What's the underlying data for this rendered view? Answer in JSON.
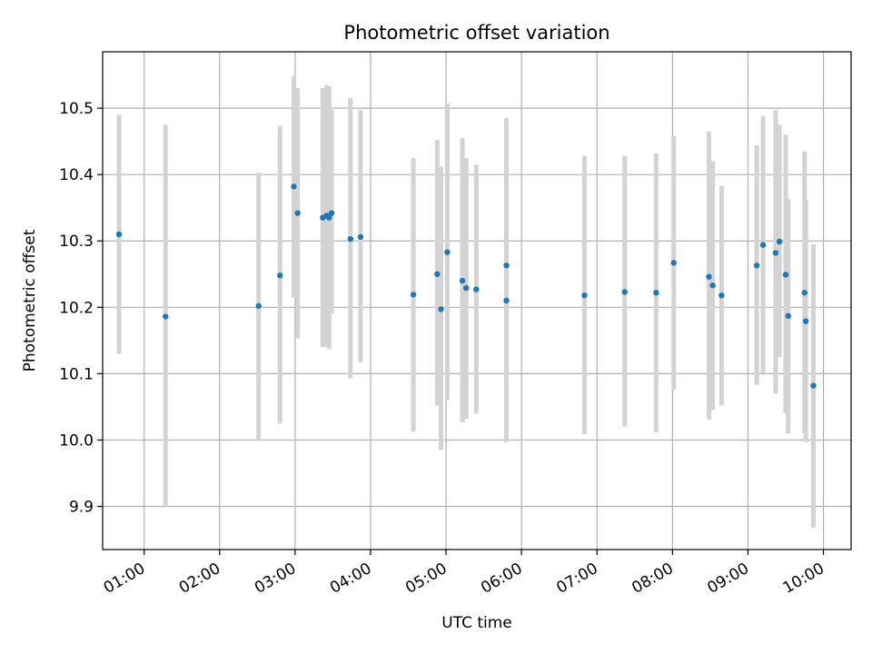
{
  "chart_data": {
    "type": "scatter",
    "title": "Photometric offset variation",
    "xlabel": "UTC time",
    "ylabel": "Photometric offset",
    "xlim": [
      "00:27",
      "10:22"
    ],
    "ylim": [
      9.835,
      10.585
    ],
    "x_ticks": [
      "01:00",
      "02:00",
      "03:00",
      "04:00",
      "05:00",
      "06:00",
      "07:00",
      "08:00",
      "09:00",
      "10:00"
    ],
    "y_ticks": [
      9.9,
      10.0,
      10.1,
      10.2,
      10.3,
      10.4,
      10.5
    ],
    "y_tick_labels": [
      "9.9",
      "10.0",
      "10.1",
      "10.2",
      "10.3",
      "10.4",
      "10.5"
    ],
    "grid": true,
    "point_color": "#1f77b4",
    "errorbar_color": "#d3d3d3",
    "points": [
      {
        "t": "00:40",
        "y": 10.31,
        "lo": 10.13,
        "hi": 10.49
      },
      {
        "t": "01:17",
        "y": 10.186,
        "lo": 9.9,
        "hi": 10.475
      },
      {
        "t": "02:31",
        "y": 10.202,
        "lo": 10.0,
        "hi": 10.403
      },
      {
        "t": "02:48",
        "y": 10.248,
        "lo": 10.025,
        "hi": 10.473
      },
      {
        "t": "02:59",
        "y": 10.382,
        "lo": 10.215,
        "hi": 10.548
      },
      {
        "t": "03:02",
        "y": 10.342,
        "lo": 10.153,
        "hi": 10.53
      },
      {
        "t": "03:22",
        "y": 10.335,
        "lo": 10.14,
        "hi": 10.53
      },
      {
        "t": "03:25",
        "y": 10.338,
        "lo": 10.141,
        "hi": 10.535
      },
      {
        "t": "03:27",
        "y": 10.335,
        "lo": 10.137,
        "hi": 10.533
      },
      {
        "t": "03:29",
        "y": 10.342,
        "lo": 10.19,
        "hi": 10.497
      },
      {
        "t": "03:44",
        "y": 10.303,
        "lo": 10.093,
        "hi": 10.515
      },
      {
        "t": "03:52",
        "y": 10.306,
        "lo": 10.117,
        "hi": 10.497
      },
      {
        "t": "04:34",
        "y": 10.219,
        "lo": 10.013,
        "hi": 10.425
      },
      {
        "t": "04:53",
        "y": 10.25,
        "lo": 10.052,
        "hi": 10.452
      },
      {
        "t": "04:56",
        "y": 10.197,
        "lo": 9.985,
        "hi": 10.412
      },
      {
        "t": "05:01",
        "y": 10.283,
        "lo": 10.06,
        "hi": 10.507
      },
      {
        "t": "05:13",
        "y": 10.24,
        "lo": 10.027,
        "hi": 10.455
      },
      {
        "t": "05:16",
        "y": 10.229,
        "lo": 10.032,
        "hi": 10.425
      },
      {
        "t": "05:24",
        "y": 10.227,
        "lo": 10.04,
        "hi": 10.415
      },
      {
        "t": "05:48",
        "y": 10.263,
        "lo": 10.043,
        "hi": 10.485
      },
      {
        "t": "05:48",
        "y": 10.21,
        "lo": 9.997,
        "hi": 10.423
      },
      {
        "t": "06:50",
        "y": 10.218,
        "lo": 10.009,
        "hi": 10.428
      },
      {
        "t": "07:22",
        "y": 10.223,
        "lo": 10.02,
        "hi": 10.428
      },
      {
        "t": "07:47",
        "y": 10.222,
        "lo": 10.012,
        "hi": 10.432
      },
      {
        "t": "08:01",
        "y": 10.267,
        "lo": 10.076,
        "hi": 10.458
      },
      {
        "t": "08:29",
        "y": 10.246,
        "lo": 10.031,
        "hi": 10.465
      },
      {
        "t": "08:32",
        "y": 10.233,
        "lo": 10.045,
        "hi": 10.42
      },
      {
        "t": "08:39",
        "y": 10.218,
        "lo": 10.052,
        "hi": 10.383
      },
      {
        "t": "09:07",
        "y": 10.263,
        "lo": 10.083,
        "hi": 10.444
      },
      {
        "t": "09:12",
        "y": 10.294,
        "lo": 10.1,
        "hi": 10.488
      },
      {
        "t": "09:22",
        "y": 10.282,
        "lo": 10.07,
        "hi": 10.497
      },
      {
        "t": "09:25",
        "y": 10.299,
        "lo": 10.125,
        "hi": 10.475
      },
      {
        "t": "09:30",
        "y": 10.249,
        "lo": 10.04,
        "hi": 10.46
      },
      {
        "t": "09:32",
        "y": 10.187,
        "lo": 10.01,
        "hi": 10.363
      },
      {
        "t": "09:45",
        "y": 10.222,
        "lo": 10.01,
        "hi": 10.435
      },
      {
        "t": "09:46",
        "y": 10.179,
        "lo": 9.997,
        "hi": 10.362
      },
      {
        "t": "09:52",
        "y": 10.082,
        "lo": 9.868,
        "hi": 10.295
      }
    ]
  }
}
